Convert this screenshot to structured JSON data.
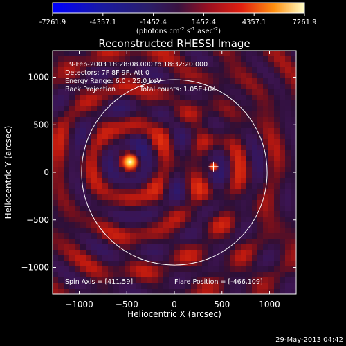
{
  "chart_data": {
    "type": "heatmap",
    "title": "Reconstructed RHESSI Image",
    "xlabel": "Heliocentric X (arcsec)",
    "ylabel": "Heliocentric Y (arcsec)",
    "xlim": [
      -1280,
      1280
    ],
    "ylim": [
      -1280,
      1280
    ],
    "xticks": [
      -1000,
      -500,
      0,
      500,
      1000
    ],
    "yticks": [
      -1000,
      -500,
      0,
      500,
      1000
    ],
    "colorbar": {
      "min": -7261.9,
      "max": 7261.9,
      "ticks": [
        "-7261.9",
        "-4357.1",
        "-1452.4",
        "1452.4",
        "4357.1",
        "7261.9"
      ],
      "unit_prefix": "(photons cm",
      "unit_sup1": "-2",
      "unit_mid": " s",
      "unit_sup2": "-1",
      "unit_mid2": " asec",
      "unit_sup3": "-2",
      "unit_suffix": ")"
    },
    "annotations": [
      "9-Feb-2003 18:28:08.000 to 18:32:20.000",
      "Detectors: 7F 8F 9F, Att 0",
      "Energy Range: 6.0 - 25.0 keV",
      "Back Projection",
      "Total counts: 1.05E+04"
    ],
    "spin_axis": "Spin Axis = [411,59]",
    "flare_position": "Flare Position = [-466,109]",
    "sources": [
      {
        "x": -466,
        "y": 109,
        "intensity": 7261.9
      },
      {
        "x": 411,
        "y": 59,
        "intensity": 4357.1
      }
    ],
    "spin_axis_point": {
      "x": 411,
      "y": 59
    },
    "solar_limb_radius": 975,
    "footer_date": "29-May-2013 04:42"
  }
}
